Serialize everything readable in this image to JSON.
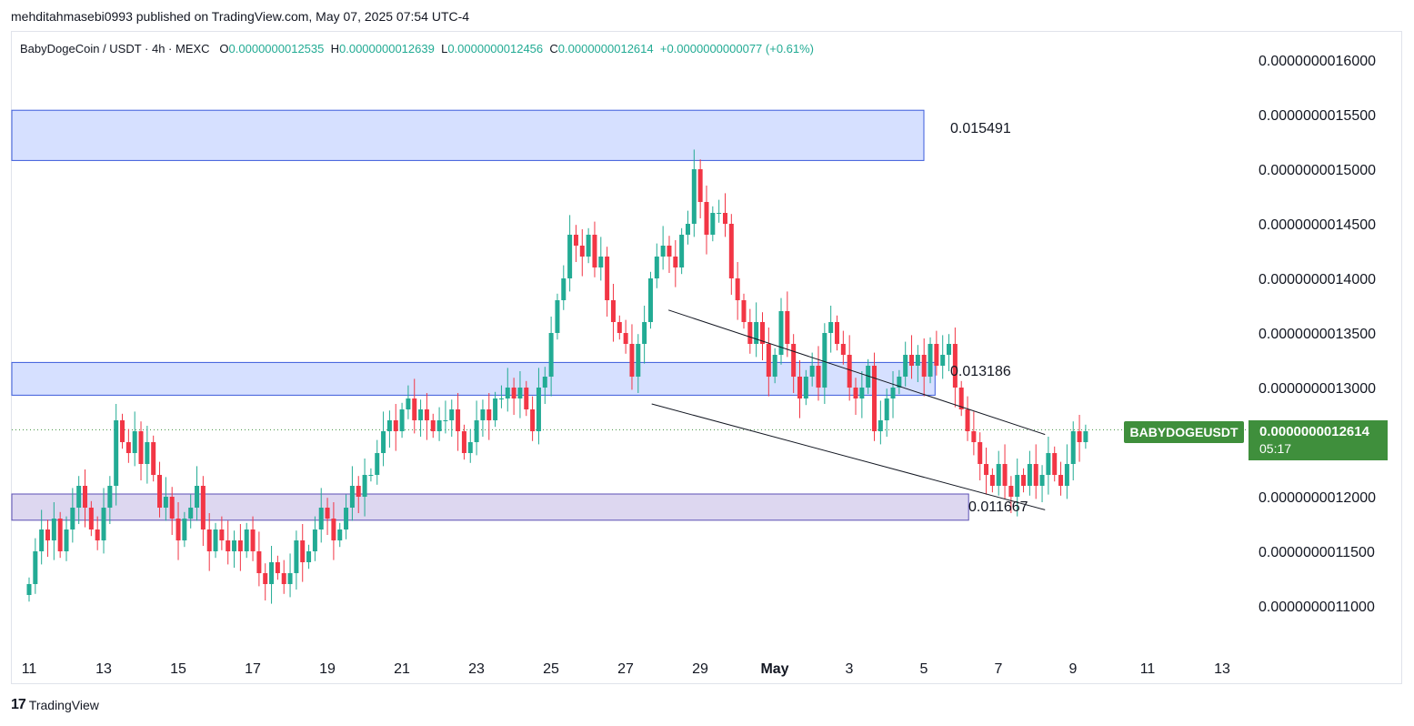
{
  "header": {
    "publisher": "mehditahmasebi0993 published on TradingView.com, May 07, 2025 07:54 UTC-4"
  },
  "symbol": {
    "name": "BabyDogeCoin / USDT · 4h · MEXC",
    "o_label": "O",
    "o": "0.0000000012535",
    "h_label": "H",
    "h": "0.0000000012639",
    "l_label": "L",
    "l": "0.0000000012456",
    "c_label": "C",
    "c": "0.0000000012614",
    "change": "+0.0000000000077 (+0.61%)"
  },
  "tags": {
    "ticker": "BABYDOGEUSDT",
    "last_price": "0.0000000012614",
    "countdown": "05:17"
  },
  "footer": {
    "brand": "TradingView"
  },
  "colors": {
    "up": "#22ab94",
    "down": "#f23645",
    "zone_blue": "#d6e0ff",
    "zone_purple": "#ddd7f0",
    "tag": "#3f8f3c"
  },
  "chart_data": {
    "type": "candlestick",
    "title": "BabyDogeCoin / USDT · 4h · MEXC",
    "ylim": [
      1.05e-09,
      1.63e-09
    ],
    "y_ticks": [
      "0.0000000016000",
      "0.0000000015500",
      "0.0000000015000",
      "0.0000000014500",
      "0.0000000014000",
      "0.0000000013500",
      "0.0000000013000",
      "0.0000000012000",
      "0.0000000011500",
      "0.0000000011000"
    ],
    "y_tick_values": [
      1.6,
      1.55,
      1.5,
      1.45,
      1.4,
      1.35,
      1.3,
      1.2,
      1.15,
      1.1
    ],
    "x_ticks": [
      "11",
      "13",
      "15",
      "17",
      "19",
      "21",
      "23",
      "25",
      "27",
      "29",
      "May",
      "3",
      "5",
      "7",
      "9",
      "11",
      "13"
    ],
    "x_tick_days": [
      11,
      13,
      15,
      17,
      19,
      21,
      23,
      25,
      27,
      29,
      31,
      33,
      35,
      37,
      39,
      41,
      43
    ],
    "zones": [
      {
        "label": "0.015491",
        "low": 1.508,
        "high": 1.554,
        "start_day": 11,
        "end_day": 35
      },
      {
        "label": "0.013186",
        "low": 1.293,
        "high": 1.323,
        "start_day": 11,
        "end_day": 35.3
      },
      {
        "label": "0.011667",
        "low": 1.1785,
        "high": 1.2025,
        "start_day": 11,
        "end_day": 36.2
      }
    ],
    "channel": {
      "upper": [
        [
          28.15,
          1.371
        ],
        [
          38.25,
          1.257
        ]
      ],
      "lower": [
        [
          27.7,
          1.285
        ],
        [
          38.25,
          1.188
        ]
      ]
    },
    "candle_start_day": 11.0,
    "candle_step_days": 0.1667,
    "closes_scaled": [
      1.12,
      1.15,
      1.17,
      1.16,
      1.18,
      1.15,
      1.17,
      1.19,
      1.21,
      1.19,
      1.17,
      1.16,
      1.19,
      1.21,
      1.27,
      1.25,
      1.24,
      1.26,
      1.23,
      1.25,
      1.22,
      1.19,
      1.2,
      1.18,
      1.16,
      1.18,
      1.19,
      1.21,
      1.17,
      1.15,
      1.17,
      1.16,
      1.15,
      1.16,
      1.15,
      1.17,
      1.15,
      1.13,
      1.12,
      1.14,
      1.13,
      1.12,
      1.13,
      1.16,
      1.14,
      1.15,
      1.17,
      1.19,
      1.18,
      1.16,
      1.17,
      1.19,
      1.21,
      1.2,
      1.22,
      1.22,
      1.24,
      1.26,
      1.27,
      1.26,
      1.28,
      1.29,
      1.27,
      1.28,
      1.27,
      1.26,
      1.27,
      1.27,
      1.28,
      1.26,
      1.24,
      1.25,
      1.27,
      1.28,
      1.27,
      1.29,
      1.29,
      1.3,
      1.29,
      1.3,
      1.28,
      1.26,
      1.3,
      1.31,
      1.35,
      1.38,
      1.4,
      1.44,
      1.43,
      1.42,
      1.44,
      1.41,
      1.42,
      1.38,
      1.36,
      1.35,
      1.34,
      1.31,
      1.34,
      1.36,
      1.4,
      1.42,
      1.43,
      1.42,
      1.41,
      1.44,
      1.45,
      1.5,
      1.47,
      1.44,
      1.46,
      1.46,
      1.45,
      1.4,
      1.38,
      1.36,
      1.34,
      1.36,
      1.34,
      1.31,
      1.33,
      1.37,
      1.34,
      1.31,
      1.29,
      1.31,
      1.32,
      1.3,
      1.35,
      1.36,
      1.34,
      1.33,
      1.3,
      1.29,
      1.3,
      1.32,
      1.26,
      1.27,
      1.29,
      1.3,
      1.31,
      1.33,
      1.32,
      1.33,
      1.31,
      1.34,
      1.32,
      1.33,
      1.34,
      1.3,
      1.28,
      1.26,
      1.25,
      1.23,
      1.22,
      1.21,
      1.23,
      1.21,
      1.2,
      1.22,
      1.21,
      1.23,
      1.21,
      1.22,
      1.24,
      1.22,
      1.21,
      1.23,
      1.26,
      1.25,
      1.26
    ]
  }
}
